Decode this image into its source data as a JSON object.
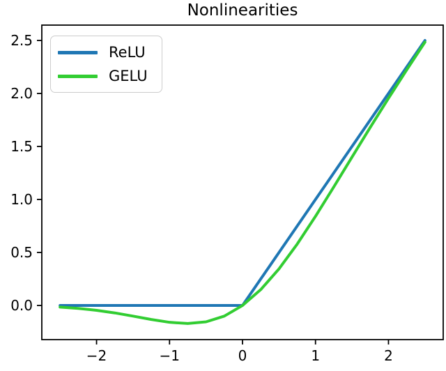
{
  "figure": {
    "background": "#ffffff"
  },
  "chart_data": {
    "type": "line",
    "title": "Nonlinearities",
    "xlabel": "",
    "ylabel": "",
    "grid": false,
    "xlim": [
      -2.75,
      2.75
    ],
    "ylim": [
      -0.322,
      2.645
    ],
    "x_ticks": [
      -2,
      -1,
      0,
      1,
      2
    ],
    "x_tick_labels": [
      "−2",
      "−1",
      "0",
      "1",
      "2"
    ],
    "y_ticks": [
      0.0,
      0.5,
      1.0,
      1.5,
      2.0,
      2.5
    ],
    "y_tick_labels": [
      "0.0",
      "0.5",
      "1.0",
      "1.5",
      "2.0",
      "2.5"
    ],
    "legend": {
      "position": "upper left"
    },
    "x": [
      -2.5,
      -2.25,
      -2.0,
      -1.75,
      -1.5,
      -1.25,
      -1.0,
      -0.75,
      -0.5,
      -0.25,
      0.0,
      0.25,
      0.5,
      0.75,
      1.0,
      1.25,
      1.5,
      1.75,
      2.0,
      2.25,
      2.5
    ],
    "series": [
      {
        "name": "ReLU",
        "color": "#1f77b4",
        "values": [
          0.0,
          0.0,
          0.0,
          0.0,
          0.0,
          0.0,
          0.0,
          0.0,
          0.0,
          0.0,
          0.0,
          0.25,
          0.5,
          0.75,
          1.0,
          1.25,
          1.5,
          1.75,
          2.0,
          2.25,
          2.5
        ]
      },
      {
        "name": "GELU",
        "color": "#32cd32",
        "values": [
          -0.0155,
          -0.0275,
          -0.0455,
          -0.0701,
          -0.1002,
          -0.1321,
          -0.1587,
          -0.17,
          -0.1543,
          -0.1003,
          0.0,
          0.1497,
          0.3457,
          0.58,
          0.8413,
          1.1179,
          1.3998,
          1.6799,
          1.9545,
          2.2225,
          2.4845
        ]
      }
    ],
    "style": {
      "axis_color": "#000000",
      "line_width": 4,
      "axis_line_width": 1.8,
      "tick_length": 7,
      "legend_border_color": "#cccccc"
    }
  }
}
